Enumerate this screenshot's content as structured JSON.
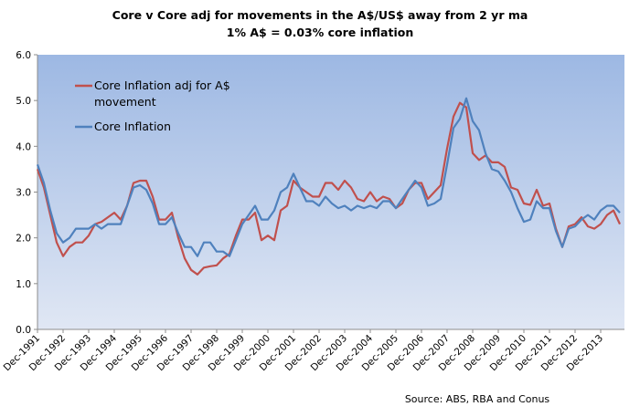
{
  "chart_data": {
    "type": "line",
    "title": "Core v Core adj for movements in the A$/US$ away from 2 yr ma",
    "subtitle": "1% A$ = 0.03% core inflation",
    "xlabel": "",
    "ylabel": "",
    "ylim": [
      0,
      6
    ],
    "yticks": [
      "0.0",
      "1.0",
      "2.0",
      "3.0",
      "4.0",
      "5.0",
      "6.0"
    ],
    "ytick_values": [
      0,
      1,
      2,
      3,
      4,
      5,
      6
    ],
    "xtick_labels": [
      "Dec-1991",
      "Dec-1992",
      "Dec-1993",
      "Dec-1994",
      "Dec-1995",
      "Dec-1996",
      "Dec-1997",
      "Dec-1998",
      "Dec-1999",
      "Dec-2000",
      "Dec-2001",
      "Dec-2002",
      "Dec-2003",
      "Dec-2004",
      "Dec-2005",
      "Dec-2006",
      "Dec-2007",
      "Dec-2008",
      "Dec-2009",
      "Dec-2010",
      "Dec-2011",
      "Dec-2012",
      "Dec-2013"
    ],
    "x_frequency": "quarterly",
    "legend_position": "top-left",
    "grid": false,
    "series": [
      {
        "name": "Core Inflation adj for A$ movement",
        "color": "#c0504d",
        "values": [
          3.5,
          3.1,
          2.5,
          1.9,
          1.6,
          1.8,
          1.9,
          1.9,
          2.05,
          2.3,
          2.35,
          2.45,
          2.55,
          2.4,
          2.7,
          3.2,
          3.25,
          3.25,
          2.9,
          2.4,
          2.4,
          2.55,
          2.0,
          1.55,
          1.3,
          1.2,
          1.35,
          1.38,
          1.4,
          1.55,
          1.65,
          2.05,
          2.4,
          2.4,
          2.55,
          1.95,
          2.05,
          1.95,
          2.6,
          2.7,
          3.25,
          3.1,
          3.0,
          2.9,
          2.9,
          3.2,
          3.2,
          3.05,
          3.25,
          3.1,
          2.85,
          2.8,
          3.0,
          2.8,
          2.9,
          2.85,
          2.65,
          2.75,
          3.05,
          3.2,
          3.2,
          2.85,
          3.0,
          3.15,
          3.95,
          4.65,
          4.95,
          4.85,
          3.85,
          3.7,
          3.8,
          3.65,
          3.65,
          3.55,
          3.1,
          3.05,
          2.75,
          2.72,
          3.05,
          2.7,
          2.75,
          2.2,
          1.8,
          2.25,
          2.3,
          2.45,
          2.25,
          2.2,
          2.3,
          2.5,
          2.6,
          2.3
        ]
      },
      {
        "name": "Core Inflation",
        "color": "#4f81bd",
        "values": [
          3.6,
          3.2,
          2.6,
          2.1,
          1.9,
          2.0,
          2.2,
          2.2,
          2.2,
          2.3,
          2.2,
          2.3,
          2.3,
          2.3,
          2.7,
          3.1,
          3.15,
          3.05,
          2.75,
          2.3,
          2.3,
          2.45,
          2.1,
          1.8,
          1.8,
          1.6,
          1.9,
          1.9,
          1.7,
          1.7,
          1.6,
          1.95,
          2.3,
          2.5,
          2.7,
          2.4,
          2.4,
          2.6,
          3.0,
          3.1,
          3.4,
          3.1,
          2.8,
          2.8,
          2.7,
          2.9,
          2.75,
          2.65,
          2.7,
          2.6,
          2.7,
          2.65,
          2.7,
          2.65,
          2.8,
          2.8,
          2.65,
          2.85,
          3.05,
          3.25,
          3.1,
          2.7,
          2.75,
          2.85,
          3.6,
          4.4,
          4.6,
          5.05,
          4.55,
          4.35,
          3.85,
          3.5,
          3.45,
          3.25,
          3.0,
          2.65,
          2.35,
          2.4,
          2.8,
          2.65,
          2.65,
          2.15,
          1.8,
          2.2,
          2.25,
          2.4,
          2.5,
          2.4,
          2.6,
          2.7,
          2.7,
          2.55
        ]
      }
    ],
    "annotation": "Source: ABS, RBA and Conus"
  }
}
